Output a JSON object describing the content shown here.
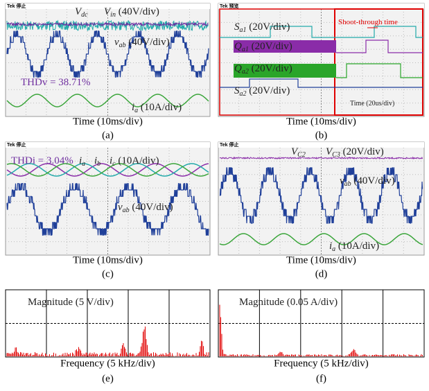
{
  "panels": [
    {
      "status": "Tek 停止",
      "xlabel": "Time (10ms/div)",
      "caption": "(a)",
      "annotations": [
        {
          "main": "V",
          "sub": "dc"
        },
        {
          "main": "V",
          "sub": "in",
          "text": " (40V/div)"
        },
        {
          "main": "v",
          "sub": "ab",
          "text": " (40V/div)"
        },
        {
          "text": "THDv = 38.71%"
        },
        {
          "main": "i",
          "sub": "a",
          "text": " (10A/div)"
        }
      ]
    },
    {
      "status": "Tek 预览",
      "xlabel": "Time (10ms/div)",
      "caption": "(b)",
      "annotations": [
        {
          "main": "S",
          "sub": "a1",
          "text": " (20V/div)"
        },
        {
          "main": "Q",
          "sub": "a1",
          "text": " (20V/div)"
        },
        {
          "main": "Q",
          "sub": "a2",
          "text": " (20V/div)"
        },
        {
          "main": "S",
          "sub": "a2",
          "text": " (20V/div)"
        },
        {
          "text": "Shoot-through time"
        },
        {
          "text": "Time (20us/div)"
        }
      ]
    },
    {
      "status": "Tek 停止",
      "xlabel": "Time (10ms/div)",
      "caption": "(c)",
      "annotations": [
        {
          "text": "THDi = 3.04%"
        },
        {
          "main": "i",
          "sub": "a"
        },
        {
          "main": "i",
          "sub": "b"
        },
        {
          "main": "i",
          "sub": "c",
          "text": " (10A/div)"
        },
        {
          "main": "v",
          "sub": "ab",
          "text": " (40V/div)"
        }
      ]
    },
    {
      "status": "Tek 停止",
      "xlabel": "Time (10ms/div)",
      "caption": "(d)",
      "annotations": [
        {
          "main": "V",
          "sub": "C2"
        },
        {
          "main": "V",
          "sub": "C3",
          "text": " (20V/div)"
        },
        {
          "main": "v",
          "sub": "ab",
          "text": " (40V/div)"
        },
        {
          "main": "i",
          "sub": "a",
          "text": " (10A/div)"
        }
      ]
    },
    {
      "xlabel": "Frequency (5 kHz/div)",
      "caption": "(e)",
      "annotations": [
        {
          "text": "Magnitude  (5 V/div)"
        }
      ]
    },
    {
      "xlabel": "Frequency (5 kHz/div)",
      "caption": "(f)",
      "annotations": [
        {
          "text": "Magnitude  (0.05 A/div)"
        }
      ]
    }
  ]
}
